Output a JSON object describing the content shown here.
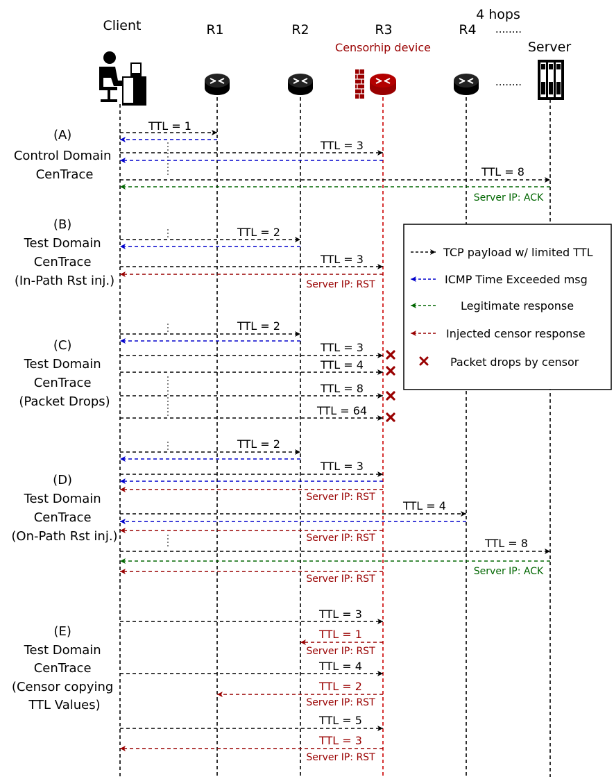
{
  "nodes": {
    "client": "Client",
    "r1": "R1",
    "r2": "R2",
    "r3": "R3",
    "r3_sub": "Censorhip device",
    "r4": "R4",
    "hops": "4 hops",
    "hops_dots": "........",
    "server": "Server",
    "mid_dots": "........"
  },
  "sections": {
    "a": [
      "(A)",
      "Control Domain",
      "CenTrace"
    ],
    "b": [
      "(B)",
      "Test Domain",
      "CenTrace",
      "(In-Path Rst inj.)"
    ],
    "c": [
      "(C)",
      "Test Domain",
      "CenTrace",
      "(Packet Drops)"
    ],
    "d": [
      "(D)",
      "Test Domain",
      "CenTrace",
      "(On-Path Rst inj.)"
    ],
    "e": [
      "(E)",
      "Test Domain",
      "CenTrace",
      "(Censor copying",
      "TTL Values)"
    ]
  },
  "arrow_labels": {
    "a_ttl1": "TTL = 1",
    "a_ttl3": "TTL = 3",
    "a_ttl8": "TTL = 8",
    "a_ack": "Server IP: ACK",
    "b_ttl2": "TTL = 2",
    "b_ttl3": "TTL = 3",
    "b_rst": "Server IP: RST",
    "c_ttl2": "TTL = 2",
    "c_ttl3": "TTL = 3",
    "c_ttl4": "TTL = 4",
    "c_ttl8": "TTL = 8",
    "c_ttl64": "TTL = 64",
    "d_ttl2": "TTL = 2",
    "d_ttl3": "TTL = 3",
    "d_rst1": "Server IP: RST",
    "d_ttl4": "TTL = 4",
    "d_rst2": "Server IP: RST",
    "d_ttl8": "TTL = 8",
    "d_ack": "Server IP: ACK",
    "d_rst3": "Server IP: RST",
    "e_ttl3": "TTL = 3",
    "e_ttl1": "TTL = 1",
    "e_rst1": "Server IP: RST",
    "e_ttl4": "TTL = 4",
    "e_ttl2": "TTL = 2",
    "e_rst2": "Server IP: RST",
    "e_ttl5": "TTL = 5",
    "e_ttl3b": "TTL = 3",
    "e_rst3": "Server IP: RST"
  },
  "legend": {
    "tcp": "TCP payload w/ limited TTL",
    "icmp": "ICMP Time Exceeded msg",
    "legit": "Legitimate response",
    "injected": "Injected censor response",
    "drops": "Packet drops by censor"
  },
  "colors": {
    "black": "#000000",
    "blue": "#0000cc",
    "green": "#006600",
    "red": "#990000",
    "censor": "#cc0000"
  }
}
